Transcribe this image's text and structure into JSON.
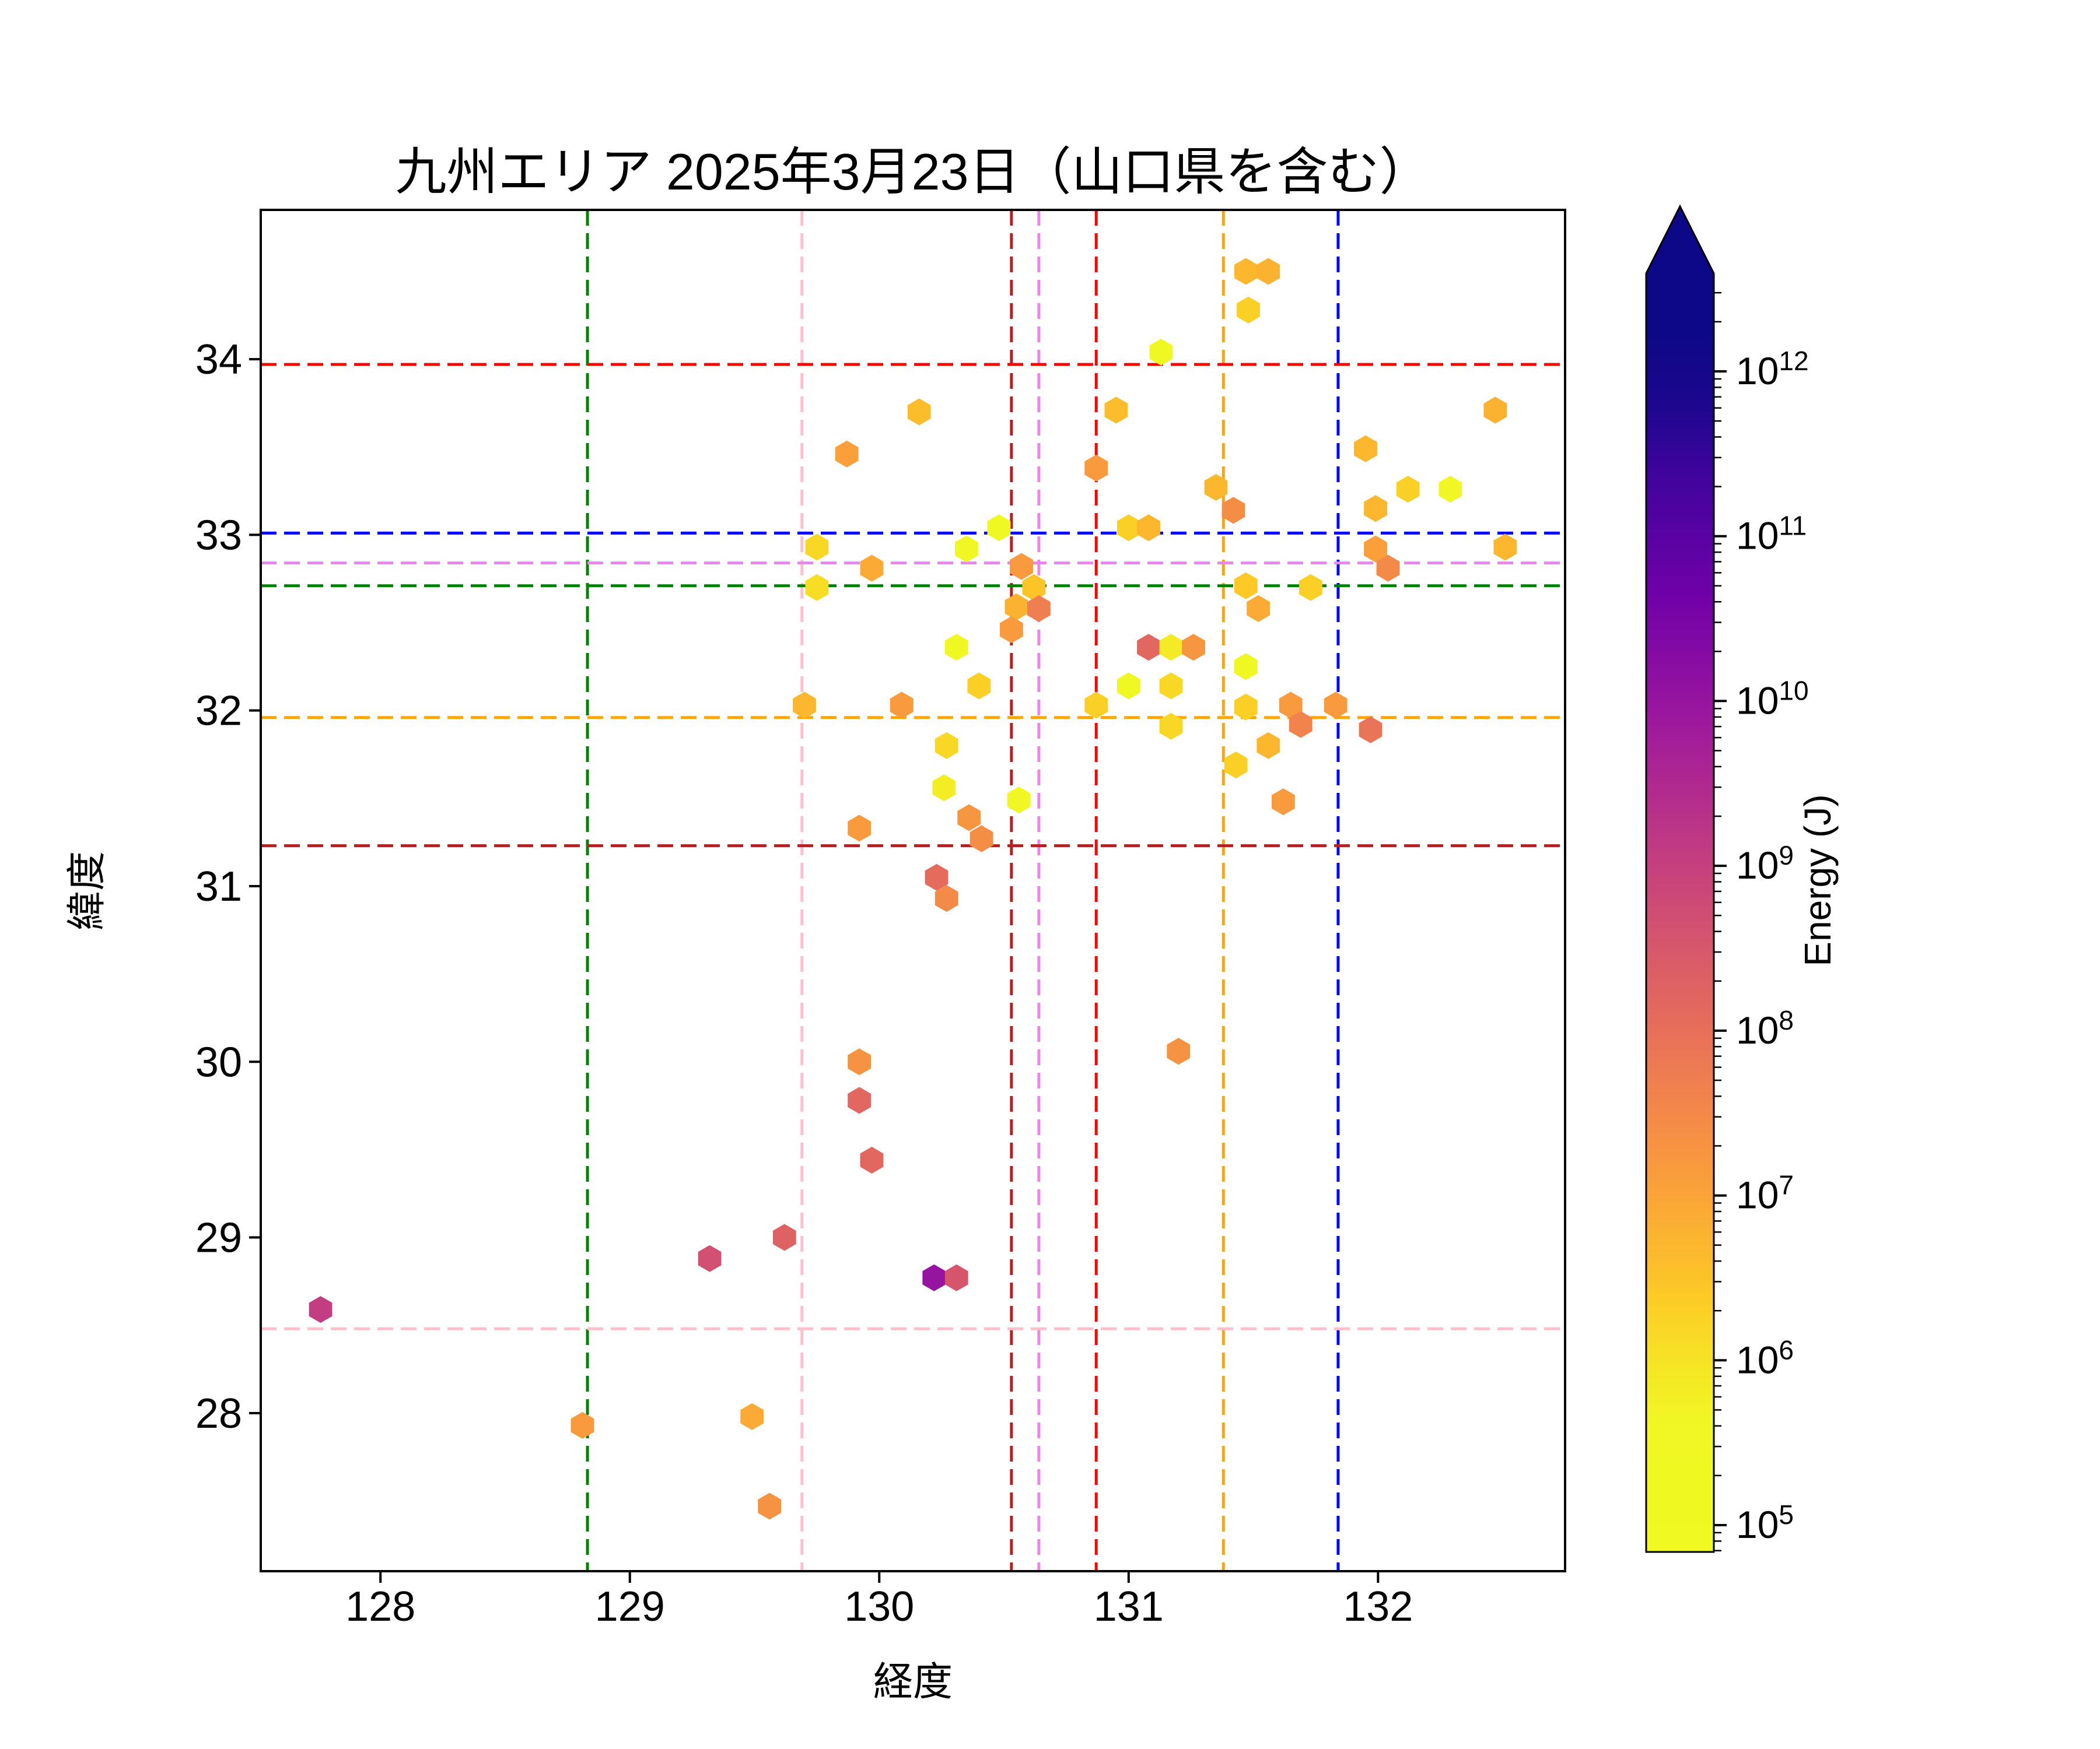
{
  "chart_data": {
    "type": "scatter",
    "title": "九州エリア 2025年3月23日（山口県を含む）",
    "xlabel": "経度",
    "ylabel": "緯度",
    "xlim": [
      127.52,
      132.75
    ],
    "ylim": [
      27.1,
      34.85
    ],
    "xticks": [
      128,
      129,
      130,
      131,
      132
    ],
    "yticks": [
      28,
      29,
      30,
      31,
      32,
      33,
      34
    ],
    "grid": false,
    "marker": "hexagon",
    "colormap": "plasma_r",
    "legend": "none",
    "colorbar": {
      "label": "Energy (J)",
      "scale": "log",
      "tick_base": "10",
      "tick_exponents": [
        5,
        6,
        7,
        8,
        9,
        10,
        11,
        12
      ],
      "log_min": 4.84,
      "log_max": 12.6,
      "extend": "max"
    },
    "reference_lines": {
      "vertical": [
        {
          "lon": 128.83,
          "color": "#008000"
        },
        {
          "lon": 129.69,
          "color": "#ffc0cb"
        },
        {
          "lon": 130.53,
          "color": "#b22222"
        },
        {
          "lon": 130.64,
          "color": "#ee82ee"
        },
        {
          "lon": 130.87,
          "color": "#ff0000"
        },
        {
          "lon": 131.38,
          "color": "#ffa500"
        },
        {
          "lon": 131.84,
          "color": "#0000ff"
        }
      ],
      "horizontal": [
        {
          "lat": 33.97,
          "color": "#ff0000"
        },
        {
          "lat": 33.01,
          "color": "#0000ff"
        },
        {
          "lat": 32.84,
          "color": "#ee82ee"
        },
        {
          "lat": 32.71,
          "color": "#008000"
        },
        {
          "lat": 31.96,
          "color": "#ffa500"
        },
        {
          "lat": 31.23,
          "color": "#b22222"
        },
        {
          "lat": 28.48,
          "color": "#ffc0cb"
        }
      ]
    },
    "plasma_anchors": [
      [
        0.0,
        "#0d0887"
      ],
      [
        0.1,
        "#46039f"
      ],
      [
        0.2,
        "#7201a8"
      ],
      [
        0.3,
        "#9c179e"
      ],
      [
        0.4,
        "#bd3786"
      ],
      [
        0.5,
        "#d8576b"
      ],
      [
        0.6,
        "#ed7953"
      ],
      [
        0.7,
        "#fa9e3b"
      ],
      [
        0.8,
        "#fdc926"
      ],
      [
        0.9,
        "#f0f724"
      ],
      [
        1.0,
        "#f0f921"
      ]
    ],
    "points": [
      {
        "lon": 131.47,
        "lat": 34.5,
        "energy": 5000000.0
      },
      {
        "lon": 131.56,
        "lat": 34.5,
        "energy": 6000000.0
      },
      {
        "lon": 131.48,
        "lat": 34.28,
        "energy": 2000000.0
      },
      {
        "lon": 131.13,
        "lat": 34.04,
        "energy": 300000.0
      },
      {
        "lon": 130.95,
        "lat": 33.71,
        "energy": 4000000.0
      },
      {
        "lon": 130.16,
        "lat": 33.7,
        "energy": 4000000.0
      },
      {
        "lon": 132.47,
        "lat": 33.71,
        "energy": 6000000.0
      },
      {
        "lon": 129.87,
        "lat": 33.46,
        "energy": 12000000.0
      },
      {
        "lon": 130.87,
        "lat": 33.38,
        "energy": 15000000.0
      },
      {
        "lon": 131.95,
        "lat": 33.49,
        "energy": 5000000.0
      },
      {
        "lon": 131.35,
        "lat": 33.27,
        "energy": 5000000.0
      },
      {
        "lon": 131.42,
        "lat": 33.14,
        "energy": 25000000.0
      },
      {
        "lon": 132.12,
        "lat": 33.26,
        "energy": 2000000.0
      },
      {
        "lon": 132.29,
        "lat": 33.26,
        "energy": 500000.0
      },
      {
        "lon": 131.99,
        "lat": 33.15,
        "energy": 5000000.0
      },
      {
        "lon": 131.0,
        "lat": 33.04,
        "energy": 2000000.0
      },
      {
        "lon": 131.08,
        "lat": 33.04,
        "energy": 5000000.0
      },
      {
        "lon": 130.48,
        "lat": 33.04,
        "energy": 250000.0
      },
      {
        "lon": 129.75,
        "lat": 32.93,
        "energy": 1500000.0
      },
      {
        "lon": 130.35,
        "lat": 32.92,
        "energy": 400000.0
      },
      {
        "lon": 131.99,
        "lat": 32.92,
        "energy": 12000000.0
      },
      {
        "lon": 132.51,
        "lat": 32.93,
        "energy": 5000000.0
      },
      {
        "lon": 129.97,
        "lat": 32.81,
        "energy": 8000000.0
      },
      {
        "lon": 132.04,
        "lat": 32.81,
        "energy": 30000000.0
      },
      {
        "lon": 129.75,
        "lat": 32.7,
        "energy": 1200000.0
      },
      {
        "lon": 130.57,
        "lat": 32.82,
        "energy": 15000000.0
      },
      {
        "lon": 130.62,
        "lat": 32.7,
        "energy": 3000000.0
      },
      {
        "lon": 130.55,
        "lat": 32.59,
        "energy": 6000000.0
      },
      {
        "lon": 130.64,
        "lat": 32.58,
        "energy": 50000000.0
      },
      {
        "lon": 130.53,
        "lat": 32.46,
        "energy": 15000000.0
      },
      {
        "lon": 131.47,
        "lat": 32.71,
        "energy": 2500000.0
      },
      {
        "lon": 131.73,
        "lat": 32.7,
        "energy": 2000000.0
      },
      {
        "lon": 131.52,
        "lat": 32.58,
        "energy": 8000000.0
      },
      {
        "lon": 131.08,
        "lat": 32.36,
        "energy": 150000000.0
      },
      {
        "lon": 131.17,
        "lat": 32.36,
        "energy": 800000.0
      },
      {
        "lon": 131.26,
        "lat": 32.36,
        "energy": 18000000.0
      },
      {
        "lon": 130.31,
        "lat": 32.36,
        "energy": 250000.0
      },
      {
        "lon": 131.47,
        "lat": 32.25,
        "energy": 300000.0
      },
      {
        "lon": 131.0,
        "lat": 32.14,
        "energy": 250000.0
      },
      {
        "lon": 131.17,
        "lat": 32.14,
        "energy": 1500000.0
      },
      {
        "lon": 130.4,
        "lat": 32.14,
        "energy": 2000000.0
      },
      {
        "lon": 129.7,
        "lat": 32.03,
        "energy": 5000000.0
      },
      {
        "lon": 130.09,
        "lat": 32.03,
        "energy": 15000000.0
      },
      {
        "lon": 130.87,
        "lat": 32.03,
        "energy": 2000000.0
      },
      {
        "lon": 131.47,
        "lat": 32.02,
        "energy": 2000000.0
      },
      {
        "lon": 131.65,
        "lat": 32.03,
        "energy": 15000000.0
      },
      {
        "lon": 131.83,
        "lat": 32.03,
        "energy": 15000000.0
      },
      {
        "lon": 131.69,
        "lat": 31.92,
        "energy": 40000000.0
      },
      {
        "lon": 131.97,
        "lat": 31.89,
        "energy": 80000000.0
      },
      {
        "lon": 131.17,
        "lat": 31.91,
        "energy": 1500000.0
      },
      {
        "lon": 131.56,
        "lat": 31.8,
        "energy": 5000000.0
      },
      {
        "lon": 131.43,
        "lat": 31.69,
        "energy": 2000000.0
      },
      {
        "lon": 130.27,
        "lat": 31.8,
        "energy": 1500000.0
      },
      {
        "lon": 130.26,
        "lat": 31.56,
        "energy": 700000.0
      },
      {
        "lon": 131.62,
        "lat": 31.48,
        "energy": 15000000.0
      },
      {
        "lon": 130.56,
        "lat": 31.49,
        "energy": 500000.0
      },
      {
        "lon": 129.92,
        "lat": 31.33,
        "energy": 15000000.0
      },
      {
        "lon": 130.36,
        "lat": 31.39,
        "energy": 18000000.0
      },
      {
        "lon": 130.41,
        "lat": 31.27,
        "energy": 25000000.0
      },
      {
        "lon": 130.23,
        "lat": 31.05,
        "energy": 120000000.0
      },
      {
        "lon": 130.27,
        "lat": 30.93,
        "energy": 30000000.0
      },
      {
        "lon": 131.2,
        "lat": 30.06,
        "energy": 20000000.0
      },
      {
        "lon": 129.92,
        "lat": 30.0,
        "energy": 20000000.0
      },
      {
        "lon": 129.92,
        "lat": 29.78,
        "energy": 150000000.0
      },
      {
        "lon": 129.97,
        "lat": 29.44,
        "energy": 150000000.0
      },
      {
        "lon": 129.62,
        "lat": 29.0,
        "energy": 200000000.0
      },
      {
        "lon": 129.32,
        "lat": 28.88,
        "energy": 450000000.0
      },
      {
        "lon": 130.22,
        "lat": 28.77,
        "energy": 10000000000.0
      },
      {
        "lon": 130.31,
        "lat": 28.77,
        "energy": 350000000.0
      },
      {
        "lon": 127.76,
        "lat": 28.59,
        "energy": 1200000000.0
      },
      {
        "lon": 128.81,
        "lat": 27.93,
        "energy": 15000000.0
      },
      {
        "lon": 129.49,
        "lat": 27.98,
        "energy": 8000000.0
      },
      {
        "lon": 129.56,
        "lat": 27.47,
        "energy": 20000000.0
      }
    ]
  }
}
